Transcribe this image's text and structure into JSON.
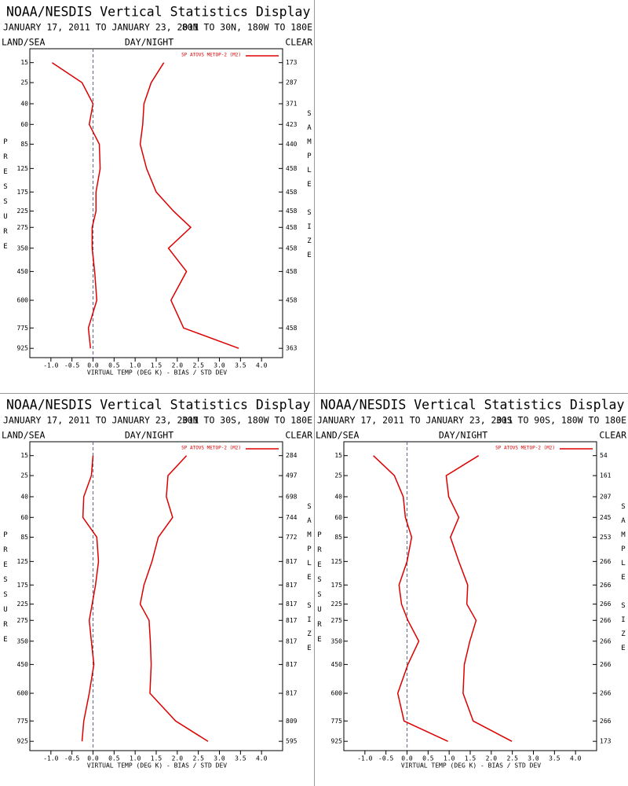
{
  "chart_data": [
    {
      "type": "line",
      "title": "NOAA/NESDIS Vertical Statistics Display",
      "subtitle": "JANUARY 17, 2011 TO JANUARY 23, 2011",
      "region": "80N TO 30N, 180W TO 180E",
      "land_sea": "LAND/SEA",
      "day_night": "DAY/NIGHT",
      "clear": "CLEAR",
      "xlabel": "VIRTUAL TEMP (DEG K) - BIAS / STD DEV",
      "ylabel": "PRESSURE",
      "y2label": "SAMPLE SIZE",
      "xlim": [
        -1.5,
        4.5
      ],
      "xticks": [
        {
          "value": -1,
          "label": "-1.0"
        },
        -0.5,
        {
          "value": 0,
          "label": "0.0"
        },
        0.5,
        {
          "value": 1,
          "label": "1.0"
        },
        1.5,
        {
          "value": 2,
          "label": "2.0"
        },
        2.5,
        {
          "value": 3,
          "label": "3.0"
        },
        3.5,
        {
          "value": 4,
          "label": "4.0"
        }
      ],
      "ylim": [
        10,
        1000
      ],
      "yscale": "power",
      "yticks": [
        15,
        25,
        40,
        60,
        85,
        125,
        175,
        225,
        275,
        350,
        450,
        600,
        775,
        925
      ],
      "levels": [
        15,
        25,
        40,
        60,
        85,
        125,
        175,
        225,
        275,
        350,
        450,
        600,
        775,
        925
      ],
      "sample_size": [
        173,
        287,
        371,
        423,
        440,
        458,
        458,
        458,
        458,
        458,
        458,
        458,
        458,
        363
      ],
      "series": [
        {
          "name": "SP ATOVS METOP-2 (M2)",
          "color": "#dd0000",
          "bias": [
            -0.97,
            -0.26,
            0.0,
            -0.09,
            0.15,
            0.17,
            0.07,
            0.07,
            -0.02,
            -0.02,
            0.04,
            0.09,
            -0.11,
            -0.06
          ],
          "std_dev": [
            1.68,
            1.38,
            1.21,
            1.18,
            1.12,
            1.27,
            1.5,
            1.91,
            2.32,
            1.79,
            2.22,
            1.85,
            2.15,
            3.46
          ]
        }
      ]
    },
    {
      "type": "line",
      "title": "NOAA/NESDIS Vertical Statistics Display",
      "subtitle": "JANUARY 17, 2011 TO JANUARY 23, 2011",
      "region": "30N TO 30S, 180W TO 180E",
      "land_sea": "LAND/SEA",
      "day_night": "DAY/NIGHT",
      "clear": "CLEAR",
      "xlabel": "VIRTUAL TEMP (DEG K) - BIAS / STD DEV",
      "ylabel": "PRESSURE",
      "y2label": "SAMPLE SIZE",
      "xlim": [
        -1.5,
        4.5
      ],
      "xticks": [
        {
          "value": -1,
          "label": "-1.0"
        },
        -0.5,
        {
          "value": 0,
          "label": "0.0"
        },
        0.5,
        {
          "value": 1,
          "label": "1.0"
        },
        1.5,
        {
          "value": 2,
          "label": "2.0"
        },
        2.5,
        {
          "value": 3,
          "label": "3.0"
        },
        3.5,
        {
          "value": 4,
          "label": "4.0"
        }
      ],
      "ylim": [
        10,
        1000
      ],
      "yscale": "power",
      "yticks": [
        15,
        25,
        40,
        60,
        85,
        125,
        175,
        225,
        275,
        350,
        450,
        600,
        775,
        925
      ],
      "levels": [
        15,
        25,
        40,
        60,
        85,
        125,
        175,
        225,
        275,
        350,
        450,
        600,
        775,
        925
      ],
      "sample_size": [
        284,
        497,
        698,
        744,
        772,
        817,
        817,
        817,
        817,
        817,
        817,
        817,
        809,
        595
      ],
      "series": [
        {
          "name": "SP ATOVS METOP-2 (M2)",
          "color": "#dd0000",
          "bias": [
            0.0,
            -0.04,
            -0.22,
            -0.24,
            0.09,
            0.13,
            0.06,
            -0.02,
            -0.09,
            -0.04,
            0.02,
            -0.09,
            -0.22,
            -0.26
          ],
          "std_dev": [
            2.22,
            1.78,
            1.74,
            1.89,
            1.55,
            1.4,
            1.21,
            1.12,
            1.33,
            1.36,
            1.38,
            1.35,
            1.96,
            2.73
          ]
        }
      ]
    },
    {
      "type": "line",
      "title": "NOAA/NESDIS Vertical Statistics Display",
      "subtitle": "JANUARY 17, 2011 TO JANUARY 23, 2011",
      "region": "30S TO 90S, 180W TO 180E",
      "land_sea": "LAND/SEA",
      "day_night": "DAY/NIGHT",
      "clear": "CLEAR",
      "xlabel": "VIRTUAL TEMP (DEG K) - BIAS / STD DEV",
      "ylabel": "PRESSURE",
      "y2label": "SAMPLE SIZE",
      "xlim": [
        -1.5,
        4.5
      ],
      "xticks": [
        {
          "value": -1,
          "label": "-1.0"
        },
        -0.5,
        {
          "value": 0,
          "label": "0.0"
        },
        0.5,
        {
          "value": 1,
          "label": "1.0"
        },
        1.5,
        {
          "value": 2,
          "label": "2.0"
        },
        2.5,
        {
          "value": 3,
          "label": "3.0"
        },
        3.5,
        {
          "value": 4,
          "label": "4.0"
        }
      ],
      "ylim": [
        10,
        1000
      ],
      "yscale": "power",
      "yticks": [
        15,
        25,
        40,
        60,
        85,
        125,
        175,
        225,
        275,
        350,
        450,
        600,
        775,
        925
      ],
      "levels": [
        15,
        25,
        40,
        60,
        85,
        125,
        175,
        225,
        275,
        350,
        450,
        600,
        775,
        925
      ],
      "sample_size": [
        54,
        161,
        207,
        245,
        253,
        266,
        266,
        266,
        266,
        266,
        266,
        266,
        266,
        173
      ],
      "series": [
        {
          "name": "SP ATOVS METOP-2 (M2)",
          "color": "#dd0000",
          "bias": [
            -0.8,
            -0.3,
            -0.09,
            -0.04,
            0.11,
            0.0,
            -0.19,
            -0.13,
            0.02,
            0.28,
            0.02,
            -0.22,
            -0.07,
            0.97
          ],
          "std_dev": [
            1.7,
            0.93,
            0.99,
            1.23,
            1.03,
            1.23,
            1.44,
            1.42,
            1.64,
            1.49,
            1.36,
            1.33,
            1.57,
            2.49
          ]
        }
      ]
    }
  ]
}
